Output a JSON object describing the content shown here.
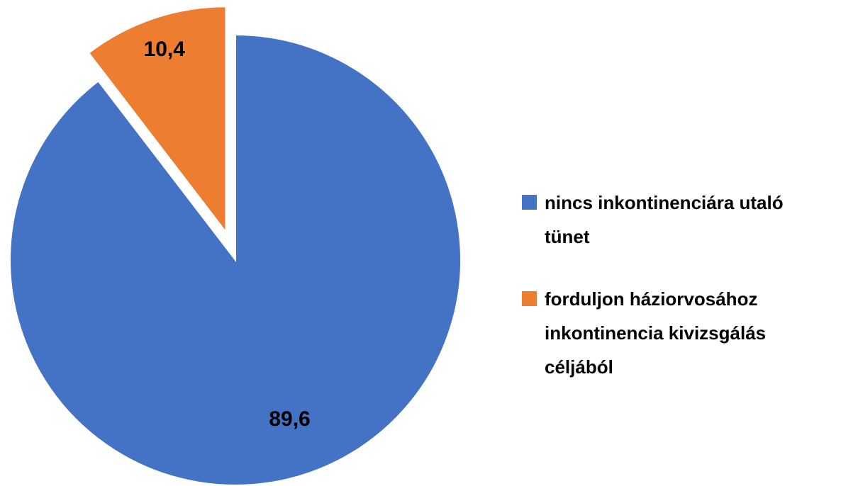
{
  "chart_data": {
    "type": "pie",
    "series": [
      {
        "name": "nincs inkontinenciára utaló tünet",
        "color": "#4472c4",
        "values": [
          89.6
        ],
        "value_labels": [
          "89,6"
        ]
      },
      {
        "name": "forduljon háziorvosához inkontinencia kivizsgálás céljából",
        "color": "#ed7d31",
        "values": [
          10.4
        ],
        "value_labels": [
          "10,4"
        ]
      }
    ],
    "exploded": [
      false,
      true
    ],
    "legend": "right"
  }
}
